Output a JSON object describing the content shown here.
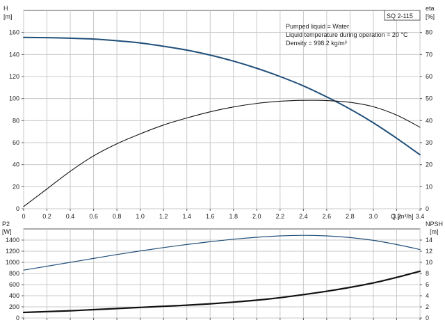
{
  "model_label": "SQ 2-115",
  "info_lines": [
    "Pumped liquid = Water",
    "Liquid temperature during operation = 20 °C",
    "Density = 998.2 kg/m³"
  ],
  "chart_data": [
    {
      "type": "line",
      "xlabel": "Q [m³/h]",
      "xlim": [
        0,
        3.4
      ],
      "x_ticks": [
        0,
        0.2,
        0.4,
        0.6,
        0.8,
        1.0,
        1.2,
        1.4,
        1.6,
        1.8,
        2.0,
        2.2,
        2.4,
        2.6,
        2.8,
        3.0,
        3.2,
        3.4
      ],
      "x_tick_labels": [
        "0",
        "0.2",
        "0.4",
        "0.6",
        "0.8",
        "1.0",
        "1.2",
        "1.4",
        "1.6",
        "1.8",
        "2.0",
        "2.2",
        "2.4",
        "2.6",
        "2.8",
        "3.0",
        "3.2",
        "3.4"
      ],
      "y_left": {
        "label": [
          "H",
          "[m]"
        ],
        "ylim": [
          0,
          180
        ],
        "ticks": [
          0,
          20,
          40,
          60,
          80,
          100,
          120,
          140,
          160
        ]
      },
      "y_right": {
        "label": [
          "eta",
          "[%]"
        ],
        "ylim": [
          0,
          90
        ],
        "ticks": [
          0,
          10,
          20,
          30,
          40,
          50,
          60,
          70,
          80
        ]
      },
      "grid": true,
      "series": [
        {
          "axis": "left",
          "color": "#1f4e79",
          "x": [
            0,
            0.2,
            0.4,
            0.6,
            0.8,
            1.0,
            1.2,
            1.4,
            1.6,
            1.8,
            2.0,
            2.2,
            2.4,
            2.6,
            2.8,
            3.0,
            3.2,
            3.4
          ],
          "y": [
            155.5,
            155.3,
            154.8,
            154,
            152.5,
            150.5,
            147.5,
            144,
            139.5,
            134,
            127.5,
            120,
            111.5,
            101.5,
            90.5,
            78,
            64,
            49
          ]
        },
        {
          "axis": "right",
          "color": "#111111",
          "x": [
            0,
            0.2,
            0.4,
            0.6,
            0.8,
            1.0,
            1.2,
            1.4,
            1.6,
            1.8,
            2.0,
            2.2,
            2.4,
            2.6,
            2.8,
            3.0,
            3.2,
            3.4
          ],
          "y": [
            1,
            9,
            17,
            24,
            29.5,
            34,
            38,
            41.2,
            44,
            46.2,
            47.8,
            48.8,
            49.2,
            49.1,
            48.3,
            46.3,
            42.5,
            37
          ]
        }
      ]
    },
    {
      "type": "line",
      "xlim": [
        0,
        3.4
      ],
      "y_left": {
        "label": [
          "P2",
          "[W]"
        ],
        "ylim": [
          0,
          1600
        ],
        "ticks": [
          0,
          200,
          400,
          600,
          800,
          1000,
          1200,
          1400
        ]
      },
      "y_right": {
        "label": [
          "NPSH",
          "[m]"
        ],
        "ylim": [
          0,
          16
        ],
        "ticks": [
          0,
          2,
          4,
          6,
          8,
          10,
          12,
          14
        ]
      },
      "grid": true,
      "series": [
        {
          "axis": "left",
          "color": "#1f4e79",
          "x": [
            0,
            0.2,
            0.4,
            0.6,
            0.8,
            1.0,
            1.2,
            1.4,
            1.6,
            1.8,
            2.0,
            2.2,
            2.4,
            2.6,
            2.8,
            3.0,
            3.2,
            3.4
          ],
          "y": [
            860,
            930,
            1000,
            1070,
            1140,
            1205,
            1265,
            1320,
            1370,
            1415,
            1450,
            1475,
            1485,
            1475,
            1445,
            1395,
            1320,
            1230
          ]
        },
        {
          "axis": "right",
          "color": "#111111",
          "x": [
            0,
            0.2,
            0.4,
            0.6,
            0.8,
            1.0,
            1.2,
            1.4,
            1.6,
            1.8,
            2.0,
            2.2,
            2.4,
            2.6,
            2.8,
            3.0,
            3.2,
            3.4
          ],
          "y": [
            1.0,
            1.15,
            1.3,
            1.5,
            1.7,
            1.9,
            2.1,
            2.3,
            2.55,
            2.85,
            3.2,
            3.65,
            4.2,
            4.8,
            5.5,
            6.3,
            7.3,
            8.4
          ]
        }
      ]
    }
  ]
}
